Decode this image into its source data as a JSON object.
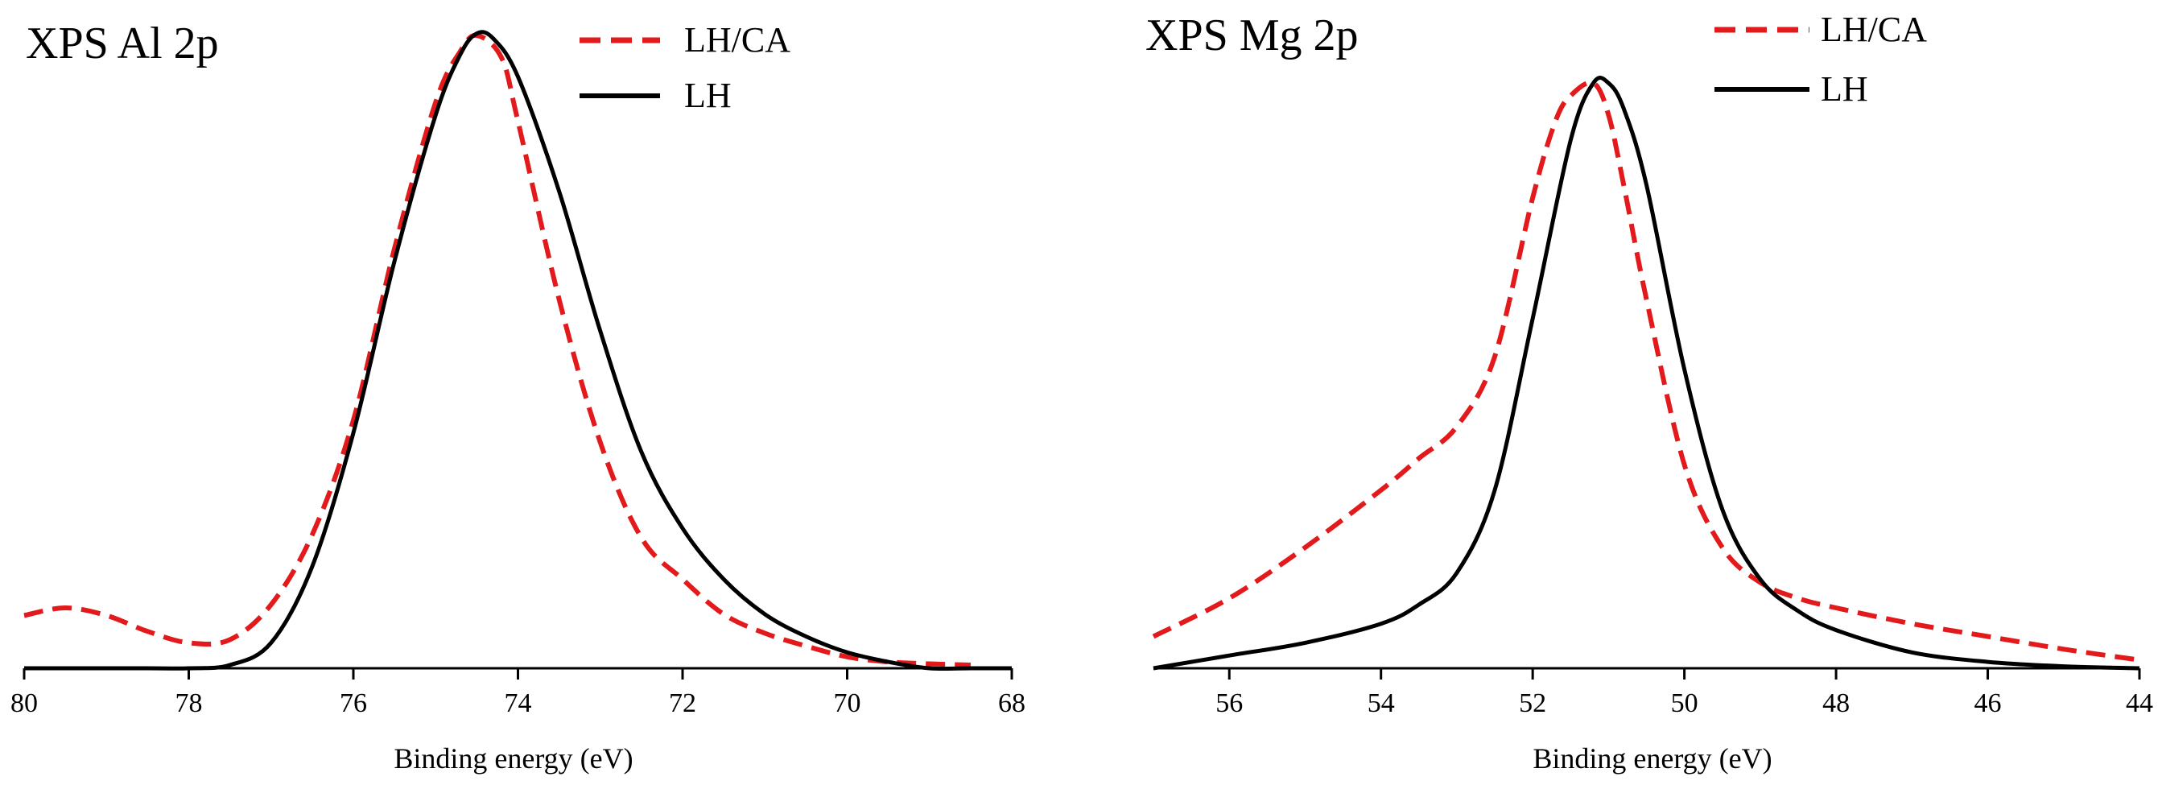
{
  "chart_data": [
    {
      "type": "line",
      "title": "XPS Al 2p",
      "xlabel": "Binding energy (eV)",
      "ylabel": "",
      "xlim": [
        80,
        68
      ],
      "ylim": [
        0,
        1.0
      ],
      "xticks": [
        80,
        78,
        76,
        74,
        72,
        70,
        68
      ],
      "tick_labels": [
        "80",
        "78",
        "76",
        "74",
        "72",
        "70",
        "68"
      ],
      "legend": [
        {
          "label": "LH/CA",
          "style": "dashed",
          "color": "#e31a1c"
        },
        {
          "label": "LH",
          "style": "solid",
          "color": "#000000"
        }
      ],
      "series": [
        {
          "name": "LH/CA",
          "color": "#e31a1c",
          "style": "dashed",
          "x": [
            80,
            79.5,
            79,
            78.5,
            78,
            77.5,
            77,
            76.5,
            76,
            75.5,
            75,
            74.7,
            74.5,
            74.2,
            74,
            73.5,
            73,
            72.5,
            72,
            71.5,
            71,
            70.5,
            70,
            69.5,
            69,
            68.5
          ],
          "y": [
            0.083,
            0.095,
            0.083,
            0.058,
            0.04,
            0.045,
            0.1,
            0.21,
            0.39,
            0.66,
            0.89,
            0.97,
            0.995,
            0.96,
            0.86,
            0.58,
            0.355,
            0.205,
            0.14,
            0.085,
            0.055,
            0.035,
            0.018,
            0.01,
            0.007,
            0.005
          ]
        },
        {
          "name": "LH",
          "color": "#000000",
          "style": "solid",
          "x": [
            80,
            78.5,
            78,
            77.5,
            77,
            76.5,
            76,
            75.5,
            75,
            74.7,
            74.5,
            74.3,
            74,
            73.5,
            73,
            72.5,
            72,
            71.5,
            71,
            70.5,
            70,
            69.5,
            69,
            68.5,
            68
          ],
          "y": [
            0.0,
            0.0,
            0.0,
            0.005,
            0.04,
            0.16,
            0.37,
            0.64,
            0.87,
            0.965,
            0.998,
            0.99,
            0.93,
            0.75,
            0.53,
            0.34,
            0.22,
            0.14,
            0.085,
            0.05,
            0.025,
            0.01,
            0.0,
            0.0,
            0.0
          ]
        }
      ]
    },
    {
      "type": "line",
      "title": "XPS Mg 2p",
      "xlabel": "Binding energy (eV)",
      "ylabel": "",
      "xlim": [
        57,
        44
      ],
      "ylim": [
        0,
        1.0
      ],
      "xticks": [
        56,
        54,
        52,
        50,
        48,
        46,
        44
      ],
      "tick_labels": [
        "56",
        "54",
        "52",
        "50",
        "48",
        "46",
        "44"
      ],
      "legend": [
        {
          "label": "LH/CA",
          "style": "dashed",
          "color": "#e31a1c"
        },
        {
          "label": "LH",
          "style": "solid",
          "color": "#000000"
        }
      ],
      "series": [
        {
          "name": "LH/CA",
          "color": "#e31a1c",
          "style": "dashed",
          "x": [
            57,
            56,
            55,
            54,
            53.5,
            53,
            52.5,
            52,
            51.7,
            51.5,
            51.2,
            51,
            50.8,
            50.5,
            50,
            49.5,
            49,
            48.5,
            48,
            47,
            46,
            45,
            44
          ],
          "y": [
            0.05,
            0.11,
            0.19,
            0.28,
            0.33,
            0.38,
            0.49,
            0.74,
            0.86,
            0.9,
            0.92,
            0.87,
            0.76,
            0.58,
            0.32,
            0.19,
            0.135,
            0.11,
            0.095,
            0.07,
            0.05,
            0.03,
            0.013
          ]
        },
        {
          "name": "LH",
          "color": "#000000",
          "style": "solid",
          "x": [
            57,
            56,
            55,
            54,
            53.5,
            53,
            52.5,
            52,
            51.5,
            51.2,
            51,
            50.8,
            50.5,
            50,
            49.5,
            49,
            48.5,
            48,
            47,
            46,
            45,
            44
          ],
          "y": [
            0.0,
            0.02,
            0.04,
            0.07,
            0.1,
            0.15,
            0.28,
            0.55,
            0.83,
            0.92,
            0.92,
            0.88,
            0.76,
            0.47,
            0.25,
            0.14,
            0.09,
            0.06,
            0.025,
            0.01,
            0.003,
            0.0
          ]
        }
      ]
    }
  ]
}
